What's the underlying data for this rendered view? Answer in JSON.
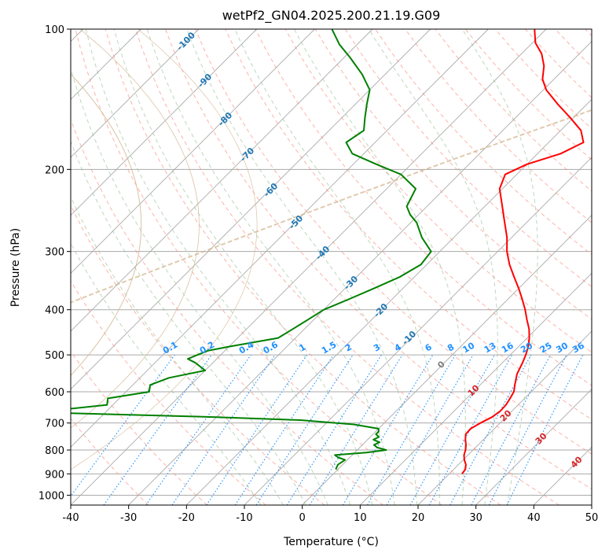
{
  "chart_data": {
    "type": "line",
    "title": "wetPf2_GN04.2025.200.21.19.G09",
    "xlabel": "Temperature (°C)",
    "ylabel": "Pressure (hPa)",
    "xlim": [
      -40,
      50
    ],
    "ylim": [
      1050,
      100
    ],
    "y_scale": "log",
    "x_ticks": [
      "-40",
      "-30",
      "-20",
      "-10",
      "0",
      "10",
      "20",
      "30",
      "40",
      "50"
    ],
    "y_ticks": [
      "100",
      "200",
      "300",
      "400",
      "500",
      "600",
      "700",
      "800",
      "900",
      "1000"
    ],
    "skew_degrees": 45,
    "grid": true,
    "colors": {
      "temperature": "#ff0000",
      "dewpoint": "#008000",
      "isotherm": "#aaaaaa",
      "dry_adiabat": "#fa8072",
      "moist_adiabat": "#8fbc8f",
      "mixing_ratio": "#1e90ff",
      "label_blue": "#1f77b4",
      "label_red": "#d62728",
      "label_gray": "#808080",
      "lcl_curve": "#d2b48c"
    },
    "series": [
      {
        "key": "temperature",
        "pressure": [
          900,
          880,
          860,
          840,
          820,
          800,
          780,
          760,
          740,
          720,
          700,
          680,
          660,
          640,
          620,
          600,
          580,
          550,
          520,
          500,
          480,
          460,
          440,
          420,
          400,
          380,
          360,
          340,
          320,
          300,
          280,
          260,
          240,
          220,
          205,
          195,
          185,
          175,
          165,
          155,
          145,
          135,
          128,
          120,
          113,
          107,
          100
        ],
        "values": [
          22.2,
          22.0,
          21.3,
          20.2,
          19.3,
          18.7,
          17.9,
          16.9,
          16.0,
          15.9,
          16.6,
          17.6,
          18.0,
          17.9,
          17.5,
          17.0,
          16.0,
          14.5,
          13.5,
          12.7,
          11.7,
          10.4,
          8.8,
          6.8,
          4.8,
          2.5,
          0.0,
          -2.8,
          -5.7,
          -8.4,
          -10.8,
          -13.8,
          -17.0,
          -20.5,
          -22.0,
          -20.0,
          -16.0,
          -14.0,
          -16.5,
          -20.5,
          -25.0,
          -29.5,
          -32.0,
          -34.0,
          -36.5,
          -39.5,
          -42.0
        ]
      },
      {
        "key": "dewpoint",
        "pressure": [
          880,
          860,
          840,
          830,
          820,
          810,
          800,
          790,
          780,
          770,
          760,
          750,
          740,
          730,
          720,
          705,
          690,
          680,
          670,
          665,
          660,
          640,
          620,
          600,
          580,
          560,
          540,
          520,
          510,
          500,
          490,
          480,
          460,
          440,
          420,
          400,
          380,
          360,
          340,
          320,
          300,
          280,
          260,
          250,
          240,
          220,
          205,
          195,
          185,
          175,
          165,
          155,
          145,
          135,
          125,
          115,
          108,
          100
        ],
        "values": [
          -0.4,
          -0.8,
          -0.4,
          -2.0,
          -3.0,
          2.0,
          5.0,
          3.0,
          2.0,
          2.5,
          1.0,
          1.5,
          0.5,
          0.5,
          0.0,
          -5.0,
          -15.0,
          -30.0,
          -50.0,
          -60.0,
          -60.0,
          -51.0,
          -52.0,
          -46.0,
          -47.0,
          -45.0,
          -40.0,
          -43.0,
          -45.0,
          -44.0,
          -43.0,
          -40.0,
          -33.0,
          -32.0,
          -31.0,
          -30.0,
          -27.5,
          -25.0,
          -22.5,
          -21.0,
          -21.5,
          -25.5,
          -29.0,
          -31.5,
          -33.5,
          -35.0,
          -40.0,
          -46.0,
          -52.0,
          -55.0,
          -54.0,
          -56.0,
          -58.0,
          -60.0,
          -64.0,
          -69.0,
          -73.0,
          -77.0
        ]
      }
    ],
    "moist_adiabat_labels": [
      "-100",
      "-90",
      "-80",
      "-70",
      "-60",
      "-50",
      "-40",
      "-30",
      "-20",
      "-10",
      "0",
      "10",
      "20",
      "30",
      "40"
    ],
    "mixing_ratio_labels": [
      "0.1",
      "0.2",
      "0.4",
      "0.6",
      "1",
      "1.5",
      "2",
      "3",
      "4",
      "6",
      "8",
      "10",
      "13",
      "16",
      "20",
      "25",
      "30",
      "36"
    ]
  }
}
